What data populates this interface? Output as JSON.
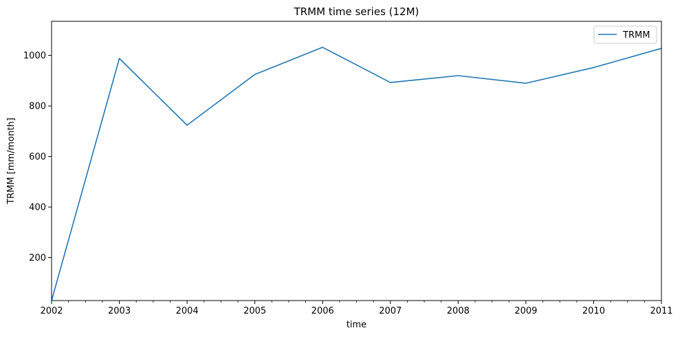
{
  "chart_data": {
    "type": "line",
    "title": "TRMM time series (12M)",
    "xlabel": "time",
    "ylabel": "TRMM [mm/month]",
    "x": [
      2002,
      2003,
      2004,
      2005,
      2006,
      2007,
      2008,
      2009,
      2010,
      2011
    ],
    "series": [
      {
        "name": "TRMM",
        "values": [
          30,
          988,
          724,
          925,
          1032,
          893,
          920,
          890,
          952,
          1028
        ]
      }
    ],
    "xlim": [
      2002,
      2011
    ],
    "ylim": [
      30,
      1135
    ],
    "x_major_ticks": [
      "2002",
      "2003",
      "2004",
      "2005",
      "2006",
      "2007",
      "2008",
      "2009",
      "2010",
      "2011"
    ],
    "y_ticks": [
      200,
      400,
      600,
      800,
      1000
    ],
    "minor_x_ticks_per_year": 3,
    "grid": false,
    "legend": "top-right",
    "colors": {
      "series": "#1f77b4",
      "axes": "#000000",
      "background": "#ffffff",
      "legend_border": "#cccccc"
    }
  }
}
